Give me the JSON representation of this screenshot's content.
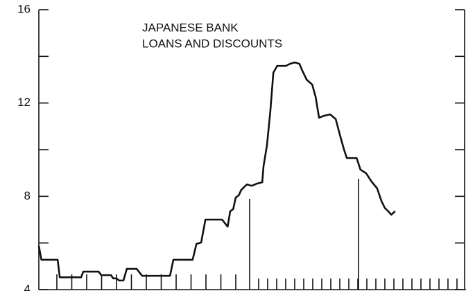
{
  "chart_data": {
    "type": "line",
    "title": [
      "JAPANESE BANK",
      "LOANS AND DISCOUNTS"
    ],
    "x": [
      0,
      0.6,
      4.4,
      4.9,
      9.9,
      10.4,
      14.0,
      14.6,
      16.9,
      17.4,
      18.2,
      18.8,
      19.8,
      20.6,
      22.9,
      24.2,
      30.7,
      31.5,
      36.0,
      36.9,
      38.0,
      39.0,
      42.9,
      44.2,
      44.8,
      45.5,
      46.1,
      46.8,
      47.4,
      48.7,
      49.8,
      51.0,
      52.3,
      52.6,
      53.4,
      54.2,
      54.9,
      55.8,
      57.8,
      58.8,
      59.9,
      61.0,
      61.7,
      62.7,
      64.0,
      64.8,
      65.6,
      66.7,
      68.2,
      69.5,
      70.5,
      71.4,
      72.1,
      74.4,
      75.3,
      76.6,
      77.9,
      79.2,
      80.2,
      81.0,
      81.8,
      82.5,
      83.4
    ],
    "values": [
      5.87,
      5.28,
      5.28,
      4.53,
      4.53,
      4.77,
      4.77,
      4.62,
      4.62,
      4.48,
      4.48,
      4.39,
      4.39,
      4.89,
      4.89,
      4.59,
      4.59,
      5.28,
      5.28,
      5.96,
      6.02,
      7.0,
      7.0,
      6.7,
      7.36,
      7.45,
      7.95,
      8.04,
      8.28,
      8.51,
      8.45,
      8.54,
      8.6,
      9.29,
      10.18,
      11.66,
      13.3,
      13.59,
      13.59,
      13.68,
      13.74,
      13.68,
      13.38,
      13.0,
      12.79,
      12.26,
      11.37,
      11.45,
      11.51,
      11.31,
      10.62,
      10.03,
      9.64,
      9.64,
      9.14,
      8.99,
      8.63,
      8.34,
      7.8,
      7.5,
      7.36,
      7.21,
      7.36
    ],
    "color": "#111111",
    "xlim": [
      0,
      100
    ],
    "ylim": [
      4,
      16
    ],
    "yticks": [
      4,
      8,
      12,
      16
    ]
  }
}
